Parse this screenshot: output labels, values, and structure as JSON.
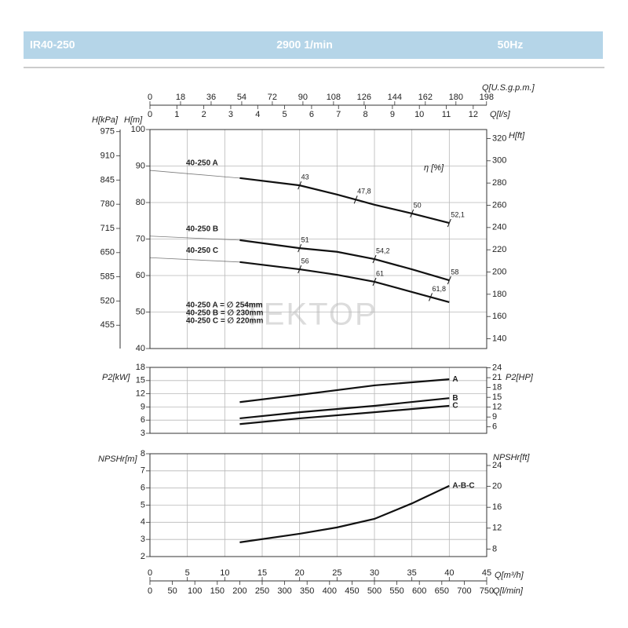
{
  "header": {
    "model": "IR40-250",
    "speed": "2900 1/min",
    "frequency": "50Hz"
  },
  "q_axes": {
    "gpm": {
      "label": "Q[U.S.g.p.m.]",
      "lim": [
        0,
        198.1
      ],
      "ticks": [
        0,
        18,
        36,
        54,
        72,
        90,
        108,
        126,
        144,
        162,
        180,
        198
      ]
    },
    "ls": {
      "label": "Q[l/s]",
      "lim": [
        0,
        12.5
      ],
      "ticks": [
        0,
        1,
        2,
        3,
        4,
        5,
        6,
        7,
        8,
        9,
        10,
        11,
        12
      ]
    },
    "m3h": {
      "label": "Q[m³/h]",
      "lim": [
        0,
        45
      ],
      "ticks": [
        0,
        5,
        10,
        15,
        20,
        25,
        30,
        35,
        40,
        45
      ]
    },
    "lmin": {
      "label": "Q[l/min]",
      "lim": [
        0,
        750
      ],
      "ticks": [
        0,
        50,
        100,
        150,
        200,
        250,
        300,
        350,
        400,
        450,
        500,
        550,
        600,
        650,
        700,
        750
      ]
    }
  },
  "chart_data": [
    {
      "type": "line",
      "ylabel": "H[m]",
      "ylim": [
        40,
        100
      ],
      "yticks": [
        40,
        50,
        60,
        70,
        80,
        90,
        100
      ],
      "y3label": "H[kPa]",
      "y3lim": [
        392.3,
        980.7
      ],
      "y3ticks": [
        455,
        520,
        585,
        650,
        715,
        780,
        845,
        910,
        975
      ],
      "y2label": "H[ft]",
      "y2lim": [
        131.2,
        328.1
      ],
      "y2ticks": [
        140,
        160,
        180,
        200,
        220,
        240,
        260,
        280,
        300,
        320
      ],
      "grid": true,
      "series": [
        {
          "name": "40-250 A",
          "color": "#111111",
          "x": [
            0,
            12,
            20,
            25,
            30,
            35,
            40
          ],
          "values": [
            88.8,
            86.7,
            84.7,
            82.2,
            79.4,
            77.0,
            74.4
          ]
        },
        {
          "name": "40-250 B",
          "color": "#111111",
          "x": [
            0,
            12,
            20,
            25,
            30,
            35,
            40
          ],
          "values": [
            70.8,
            69.7,
            67.5,
            66.5,
            64.5,
            61.7,
            58.7
          ]
        },
        {
          "name": "40-250 C",
          "color": "#111111",
          "x": [
            0,
            12,
            20,
            25,
            30,
            35,
            40
          ],
          "values": [
            64.9,
            63.7,
            61.7,
            60.2,
            58.3,
            55.5,
            52.7
          ]
        }
      ],
      "efficiency_label": "η [%]",
      "efficiency": [
        {
          "x": [
            20,
            27.5,
            35,
            40
          ],
          "values": [
            43,
            47.8,
            50,
            52.1
          ],
          "value_labels": [
            "43",
            "47,8",
            "50",
            "52,1"
          ]
        },
        {
          "x": [
            20,
            30,
            40
          ],
          "values": [
            51,
            54.2,
            58
          ],
          "value_labels": [
            "51",
            "54,2",
            "58"
          ]
        },
        {
          "x": [
            20,
            30,
            37.5
          ],
          "values": [
            56,
            61,
            61.8
          ],
          "value_labels": [
            "56",
            "61",
            "61,8"
          ]
        }
      ],
      "impellers": [
        "40-250 A = ∅ 254mm",
        "40-250 B = ∅ 230mm",
        "40-250 C = ∅ 220mm"
      ],
      "watermark": "TEKTOP"
    },
    {
      "type": "line",
      "ylabel": "P2[kW]",
      "ylim": [
        3,
        18
      ],
      "yticks": [
        3,
        6,
        9,
        12,
        15,
        18
      ],
      "y2label": "P2[HP]",
      "y2lim": [
        4.02,
        24.14
      ],
      "y2ticks": [
        6,
        9,
        12,
        15,
        18,
        21,
        24
      ],
      "grid": true,
      "series": [
        {
          "name": "A",
          "color": "#111111",
          "x": [
            12,
            20,
            30,
            40
          ],
          "values": [
            10.1,
            11.75,
            13.9,
            15.3
          ]
        },
        {
          "name": "B",
          "color": "#111111",
          "x": [
            12,
            20,
            30,
            40
          ],
          "values": [
            6.4,
            7.8,
            9.25,
            11.0
          ]
        },
        {
          "name": "C",
          "color": "#111111",
          "x": [
            12,
            20,
            30,
            40
          ],
          "values": [
            5.1,
            6.4,
            7.8,
            9.25
          ]
        }
      ]
    },
    {
      "type": "line",
      "ylabel": "NPSHr[m]",
      "ylim": [
        2,
        8
      ],
      "yticks": [
        2,
        3,
        4,
        5,
        6,
        7,
        8
      ],
      "y2label": "NPSHr[ft]",
      "y2lim": [
        6.56,
        26.25
      ],
      "y2ticks": [
        8,
        12,
        16,
        20,
        24
      ],
      "grid": true,
      "series": [
        {
          "name": "A-B-C",
          "color": "#111111",
          "x": [
            12,
            20,
            25,
            30,
            35,
            40
          ],
          "values": [
            2.83,
            3.33,
            3.7,
            4.2,
            5.1,
            6.13
          ]
        }
      ]
    }
  ]
}
